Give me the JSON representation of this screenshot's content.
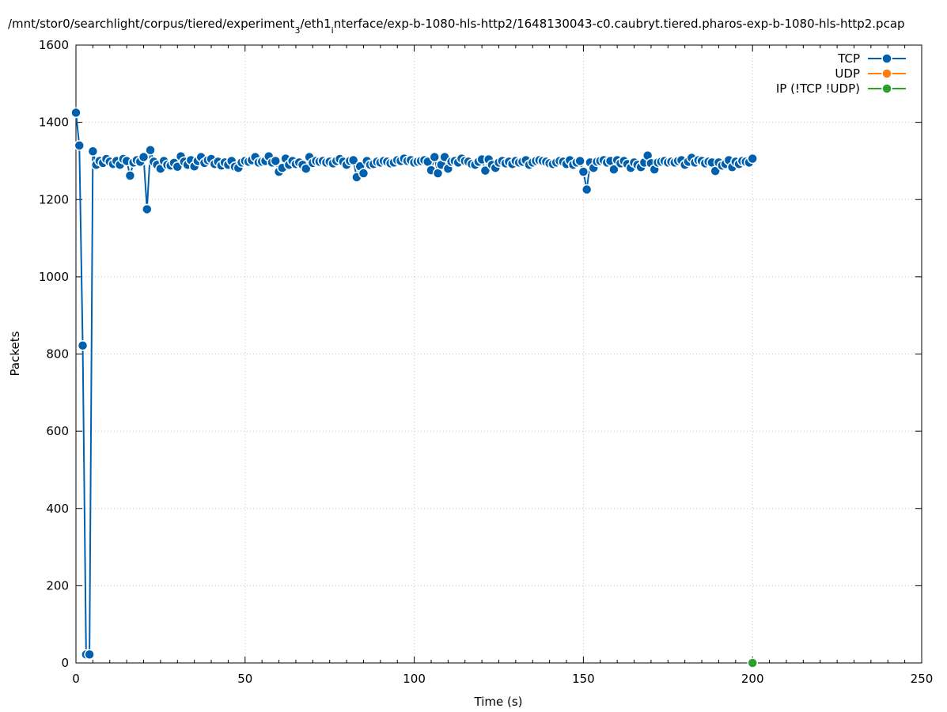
{
  "chart_data": {
    "type": "line",
    "title": "/mnt/stor0/searchlight/corpus/tiered/experiment_3/eth1_interface/exp-b-1080-hls-http2/1648130043-c0.caubryt.tiered.pharos-exp-b-1080-hls-http2.pcap",
    "title_parts": {
      "a": "/mnt/stor0/searchlight/corpus/tiered/experiment",
      "sub1": "3",
      "b": "/eth1",
      "sub2": "i",
      "c": "nterface/exp-b-1080-hls-http2/1648130043-c0.caubryt.tiered.pharos-exp-b-1080-hls-http2.pcap"
    },
    "xlabel": "Time (s)",
    "ylabel": "Packets",
    "xlim": [
      0,
      250
    ],
    "ylim": [
      0,
      1600
    ],
    "xticks": [
      "0",
      "50",
      "100",
      "150",
      "200",
      "250"
    ],
    "yticks": [
      "0",
      "200",
      "400",
      "600",
      "800",
      "1000",
      "1200",
      "1400",
      "1600"
    ],
    "grid": true,
    "legend_position": "top-right",
    "series": [
      {
        "name": "TCP",
        "color": "#0060ad",
        "x": [
          0,
          1,
          2,
          3,
          4,
          5,
          6,
          7,
          8,
          9,
          10,
          11,
          12,
          13,
          14,
          15,
          16,
          17,
          18,
          19,
          20,
          21,
          22,
          23,
          24,
          25,
          26,
          27,
          28,
          29,
          30,
          31,
          32,
          33,
          34,
          35,
          36,
          37,
          38,
          39,
          40,
          41,
          42,
          43,
          44,
          45,
          46,
          47,
          48,
          49,
          50,
          51,
          52,
          53,
          54,
          55,
          56,
          57,
          58,
          59,
          60,
          61,
          62,
          63,
          64,
          65,
          66,
          67,
          68,
          69,
          70,
          71,
          72,
          73,
          74,
          75,
          76,
          77,
          78,
          79,
          80,
          81,
          82,
          83,
          84,
          85,
          86,
          87,
          88,
          89,
          90,
          91,
          92,
          93,
          94,
          95,
          96,
          97,
          98,
          99,
          100,
          101,
          102,
          103,
          104,
          105,
          106,
          107,
          108,
          109,
          110,
          111,
          112,
          113,
          114,
          115,
          116,
          117,
          118,
          119,
          120,
          121,
          122,
          123,
          124,
          125,
          126,
          127,
          128,
          129,
          130,
          131,
          132,
          133,
          134,
          135,
          136,
          137,
          138,
          139,
          140,
          141,
          142,
          143,
          144,
          145,
          146,
          147,
          148,
          149,
          150,
          151,
          152,
          153,
          154,
          155,
          156,
          157,
          158,
          159,
          160,
          161,
          162,
          163,
          164,
          165,
          166,
          167,
          168,
          169,
          170,
          171,
          172,
          173,
          174,
          175,
          176,
          177,
          178,
          179,
          180,
          181,
          182,
          183,
          184,
          185,
          186,
          187,
          188,
          189,
          190,
          191,
          192,
          193,
          194,
          195,
          196,
          197,
          198,
          199,
          200
        ],
        "y": [
          1425,
          1340,
          822,
          22,
          22,
          1325,
          1290,
          1300,
          1295,
          1305,
          1298,
          1292,
          1300,
          1290,
          1305,
          1300,
          1262,
          1296,
          1302,
          1298,
          1310,
          1175,
          1328,
          1298,
          1290,
          1280,
          1300,
          1290,
          1288,
          1295,
          1285,
          1312,
          1298,
          1290,
          1302,
          1286,
          1300,
          1310,
          1295,
          1302,
          1305,
          1292,
          1298,
          1288,
          1296,
          1290,
          1300,
          1285,
          1282,
          1296,
          1300,
          1298,
          1302,
          1310,
          1296,
          1298,
          1300,
          1312,
          1296,
          1300,
          1272,
          1282,
          1306,
          1290,
          1300,
          1292,
          1296,
          1290,
          1280,
          1310,
          1295,
          1300,
          1298,
          1300,
          1296,
          1298,
          1294,
          1300,
          1305,
          1298,
          1290,
          1300,
          1302,
          1258,
          1286,
          1268,
          1300,
          1290,
          1292,
          1298,
          1296,
          1300,
          1298,
          1294,
          1296,
          1302,
          1300,
          1306,
          1300,
          1302,
          1296,
          1298,
          1300,
          1302,
          1298,
          1276,
          1310,
          1268,
          1290,
          1310,
          1280,
          1298,
          1300,
          1296,
          1306,
          1300,
          1298,
          1292,
          1290,
          1298,
          1304,
          1275,
          1304,
          1290,
          1282,
          1296,
          1300,
          1294,
          1298,
          1292,
          1300,
          1296,
          1298,
          1302,
          1290,
          1296,
          1300,
          1302,
          1300,
          1298,
          1294,
          1292,
          1296,
          1300,
          1298,
          1292,
          1302,
          1290,
          1296,
          1300,
          1272,
          1226,
          1296,
          1282,
          1298,
          1300,
          1302,
          1296,
          1300,
          1278,
          1302,
          1294,
          1300,
          1292,
          1282,
          1296,
          1290,
          1284,
          1296,
          1314,
          1294,
          1278,
          1296,
          1298,
          1300,
          1296,
          1298,
          1296,
          1300,
          1302,
          1290,
          1298,
          1308,
          1296,
          1302,
          1300,
          1294,
          1298,
          1296,
          1274,
          1296,
          1288,
          1292,
          1302,
          1284,
          1298,
          1292,
          1300,
          1298,
          1296,
          1306
        ]
      },
      {
        "name": "UDP",
        "color": "#ff7f0e",
        "x": [],
        "y": []
      },
      {
        "name": "IP (!TCP  !UDP)",
        "color": "#2ca02c",
        "x": [
          200
        ],
        "y": [
          0
        ]
      }
    ]
  }
}
